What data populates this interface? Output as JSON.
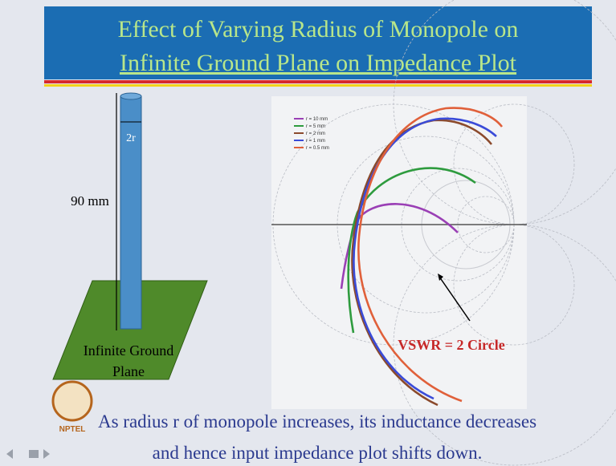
{
  "slide": {
    "title": [
      "Effect of Varying Radius of Monopole on",
      "Infinite Ground Plane on Impedance Plot"
    ],
    "antenna": {
      "radius_label": "2r",
      "height_label": "90 mm",
      "ground_label": [
        "Infinite Ground",
        "Plane"
      ]
    },
    "plot": {
      "legend": [
        "r = 10 mm",
        "r = 5 mm",
        "r = 2 mm",
        "r = 1 mm",
        "r = 0.5 mm"
      ],
      "annotation": "VSWR = 2 Circle"
    },
    "caption": [
      "As radius r of monopole increases, its inductance decreases",
      "and hence input impedance plot shifts down."
    ],
    "logo": "NPTEL"
  }
}
